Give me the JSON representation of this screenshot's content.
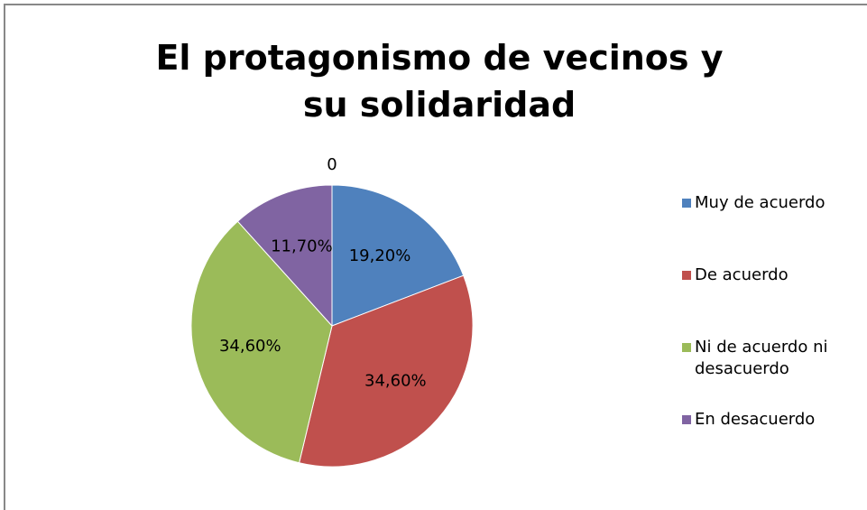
{
  "chart_data": {
    "type": "pie",
    "title": "El protagonismo de vecinos y su solidaridad",
    "categories": [
      "Muy de acuerdo",
      "De acuerdo",
      "Ni de acuerdo ni desacuerdo",
      "En desacuerdo",
      null
    ],
    "values": [
      19.2,
      34.6,
      34.6,
      11.7,
      0
    ],
    "value_labels": [
      "19,20%",
      "34,60%",
      "34,60%",
      "11,70%",
      "0"
    ],
    "colors": [
      "#4f81bd",
      "#c0504d",
      "#9bbb59",
      "#8064a2",
      "#4bacc6"
    ],
    "legend": "right"
  }
}
